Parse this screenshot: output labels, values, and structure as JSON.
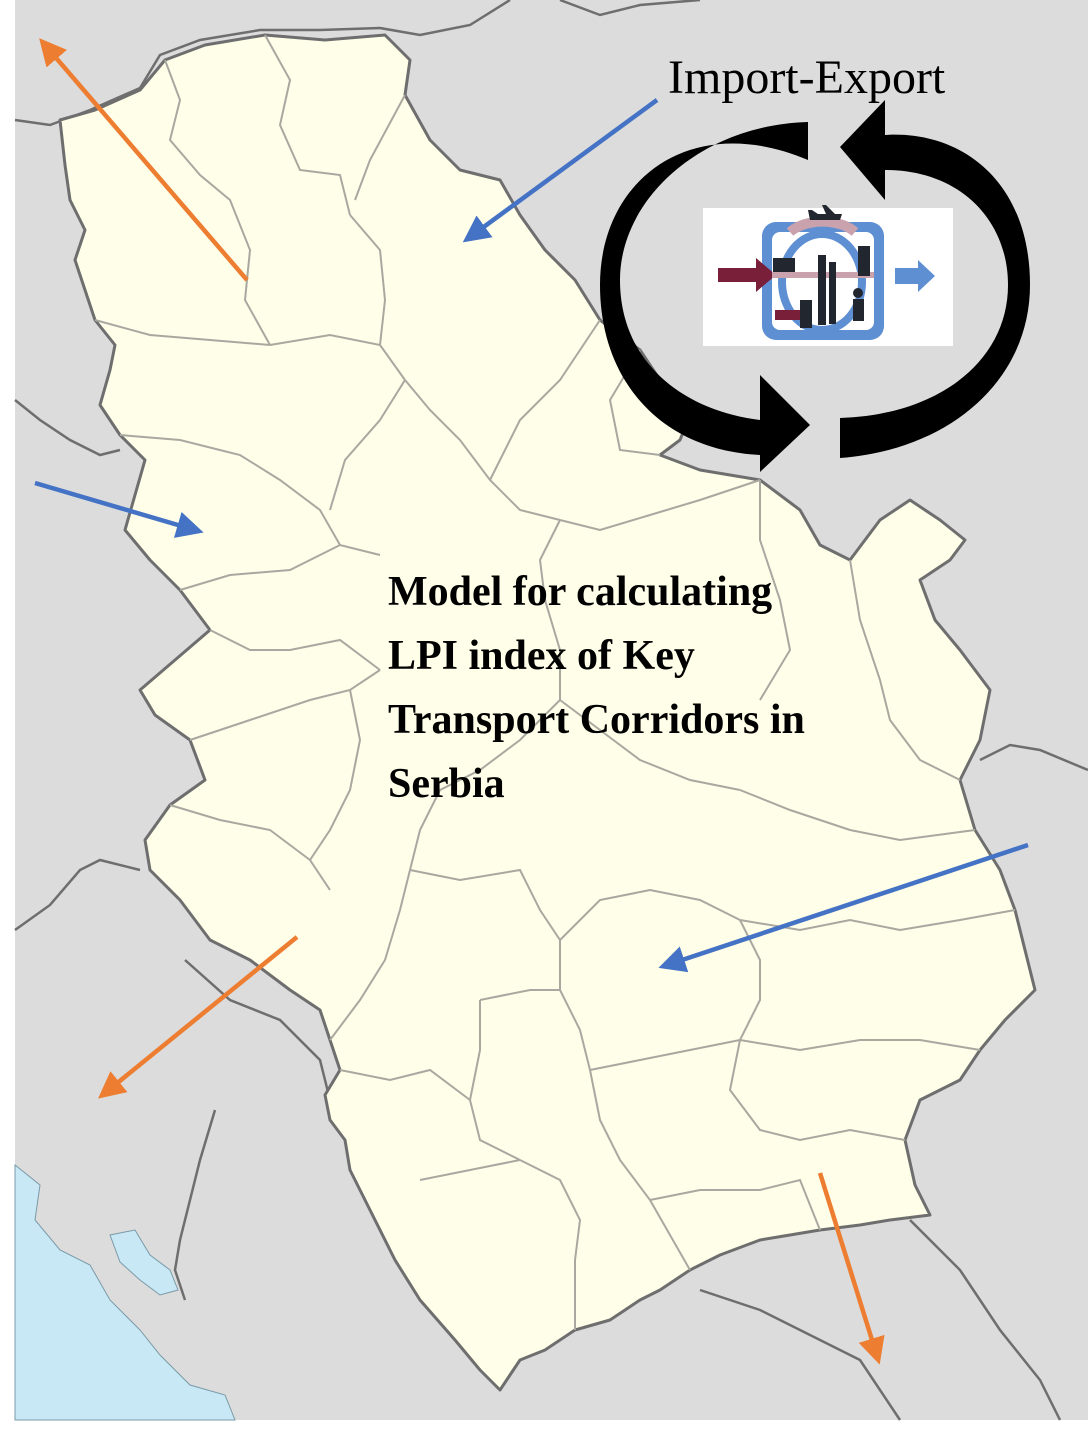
{
  "map": {
    "caption_lines": [
      "Model for calculating",
      "LPI index of Key",
      "Transport Corridors in",
      "Serbia"
    ],
    "cycle_label": "Import-Export",
    "colors": {
      "background_land": "#dcdcdc",
      "country_fill": "#fefee9",
      "border": "#6e6e6e",
      "district_border": "#a8a8a0",
      "sea": "#c9e8f5",
      "import_arrow": "#4472c4",
      "export_arrow": "#ed7d31",
      "cycle_arrow": "#000000"
    },
    "arrows": [
      {
        "kind": "export",
        "color_key": "export_arrow",
        "direction": "north-west"
      },
      {
        "kind": "import",
        "color_key": "import_arrow",
        "direction": "from north-east"
      },
      {
        "kind": "import",
        "color_key": "import_arrow",
        "direction": "from west"
      },
      {
        "kind": "export",
        "color_key": "export_arrow",
        "direction": "south-west"
      },
      {
        "kind": "import",
        "color_key": "import_arrow",
        "direction": "from east"
      },
      {
        "kind": "export",
        "color_key": "export_arrow",
        "direction": "south"
      }
    ],
    "inset_icon": "logistics-trade-icon"
  }
}
